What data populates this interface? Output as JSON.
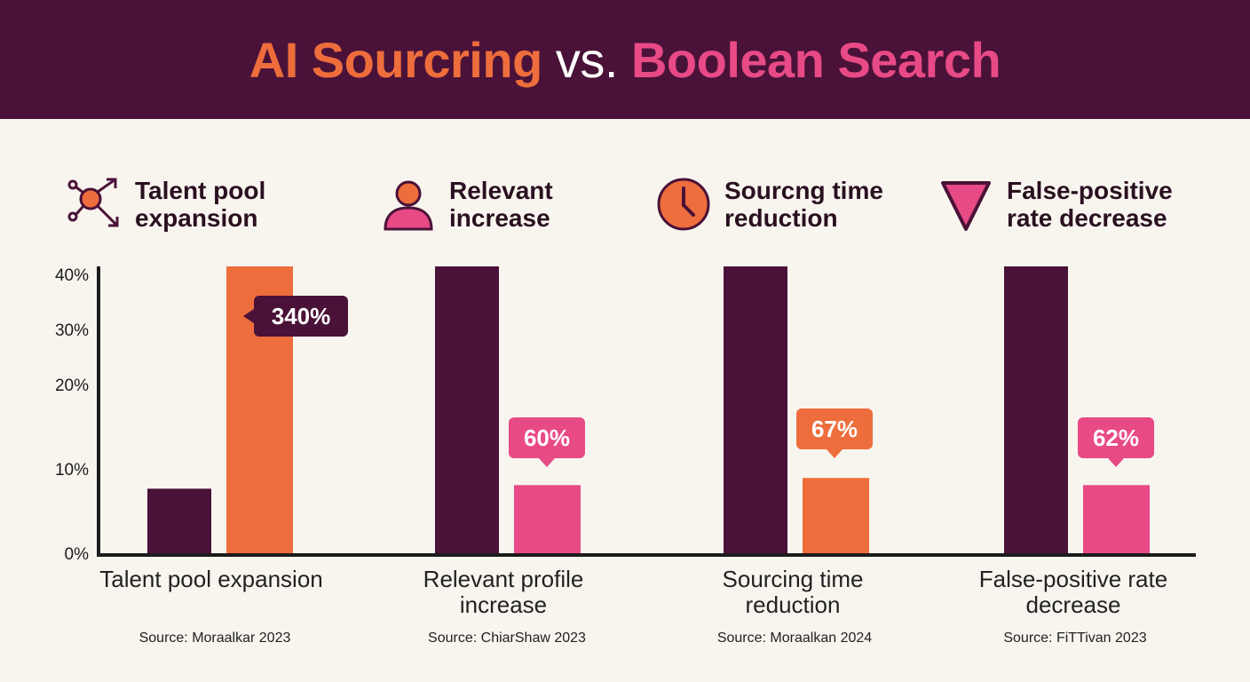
{
  "header": {
    "title_part1": "AI Sourcring",
    "title_part2": " vs. ",
    "title_part3": "Boolean Search"
  },
  "categories": [
    {
      "label": "Talent pool expansion",
      "icon": "network-arrows-icon"
    },
    {
      "label": "Relevant increase",
      "icon": "person-icon"
    },
    {
      "label": "Sourcng time reduction",
      "icon": "clock-icon"
    },
    {
      "label": "False-positive rate decrease",
      "icon": "down-triangle-icon"
    }
  ],
  "chart_data": {
    "type": "bar",
    "categories": [
      "Talent pool expansion",
      "Relevant profile increase",
      "Sourcing time reduction",
      "False-positive rate decrease"
    ],
    "yticks": [
      "0%",
      "10%",
      "20%",
      "30%",
      "40%"
    ],
    "ylim": [
      0,
      40
    ],
    "series": [
      {
        "values": [
          9,
          40,
          40,
          40
        ],
        "color": "#4a1238"
      },
      {
        "values": [
          40,
          9.5,
          10.5,
          9.5
        ],
        "colors": [
          "#ee6d3c",
          "#e84a86",
          "#ee6d3c",
          "#e84a86"
        ]
      }
    ],
    "data_labels": [
      {
        "text": "340%",
        "color": "#4a1238"
      },
      {
        "text": "60%",
        "color": "#e84a86"
      },
      {
        "text": "67%",
        "color": "#ee6d3c"
      },
      {
        "text": "62%",
        "color": "#e84a86"
      }
    ],
    "sources": [
      "Source: Moraalkar 2023",
      "Source: ChiarShaw 2023",
      "Source: Moraalkan 2024",
      "Source: FiTTivan 2023"
    ]
  },
  "colors": {
    "header_bg": "#4a1238",
    "accent_orange": "#ee6d3c",
    "accent_pink": "#e84a86",
    "background": "#f8f5ee"
  }
}
